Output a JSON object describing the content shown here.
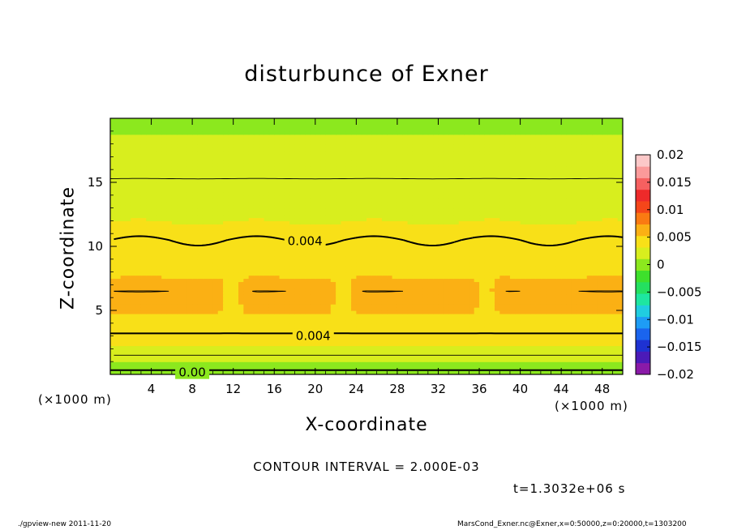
{
  "title": "disturbunce of Exner",
  "xlabel": "X-coordinate",
  "ylabel": "Z-coordinate",
  "x_unit_left": "(×1000 m)",
  "x_unit_right": "(×1000 m)",
  "contour_interval_text": "CONTOUR INTERVAL = 2.000E-03",
  "time_text": "t=1.3032e+06 s",
  "footer": {
    "left": "./gpview-new   2011-11-20",
    "right": "MarsCond_Exner.nc@Exner,x=0:50000,z=0:20000,t=1303200"
  },
  "chart_data": {
    "type": "heatmap",
    "title": "disturbunce of Exner",
    "xlabel": "X-coordinate",
    "ylabel": "Z-coordinate",
    "xlim": [
      0,
      50
    ],
    "ylim": [
      0,
      20
    ],
    "x_ticks": [
      4,
      8,
      12,
      16,
      20,
      24,
      28,
      32,
      36,
      40,
      44,
      48
    ],
    "y_ticks": [
      5,
      10,
      15
    ],
    "colorbar": {
      "min": -0.02,
      "max": 0.02,
      "tick_values": [
        0.02,
        0.015,
        0.01,
        0.005,
        0,
        -0.005,
        -0.01,
        -0.015,
        -0.02
      ],
      "tick_labels": [
        "0.02",
        "0.015",
        "0.01",
        "0.005",
        "0",
        "−0.005",
        "−0.01",
        "−0.015",
        "−0.02"
      ],
      "colors": [
        "#8a1aa8",
        "#4b1ab8",
        "#1e32d2",
        "#1a64ee",
        "#1e9cf5",
        "#20cde0",
        "#1ee6a0",
        "#24e060",
        "#3ee02c",
        "#8ce81e",
        "#d8ee1e",
        "#f8e018",
        "#fbb014",
        "#fa7a12",
        "#f5461a",
        "#ee2a2a",
        "#f66060",
        "#fb9a9a",
        "#fcc8c8"
      ]
    },
    "contour_labels": [
      {
        "x": 19,
        "z": 10.4,
        "text": "0.004"
      },
      {
        "x": 19.8,
        "z": 3.0,
        "text": "0.004"
      },
      {
        "x": 8,
        "z": 0.15,
        "text": "0.00"
      }
    ],
    "vertical_profile": [
      {
        "z": 0.0,
        "value": -0.0006
      },
      {
        "z": 1.0,
        "value": 0.0012
      },
      {
        "z": 2.0,
        "value": 0.0028
      },
      {
        "z": 3.0,
        "value": 0.0038
      },
      {
        "z": 4.0,
        "value": 0.0048
      },
      {
        "z": 5.5,
        "value": 0.0058
      },
      {
        "z": 6.5,
        "value": 0.006
      },
      {
        "z": 7.5,
        "value": 0.0053
      },
      {
        "z": 9.0,
        "value": 0.0046
      },
      {
        "z": 10.5,
        "value": 0.004
      },
      {
        "z": 12.0,
        "value": 0.0031
      },
      {
        "z": 13.5,
        "value": 0.0025
      },
      {
        "z": 16.0,
        "value": 0.0018
      },
      {
        "z": 18.5,
        "value": 0.0012
      },
      {
        "z": 20.0,
        "value": 0.0006
      }
    ],
    "contour_interval": 0.002,
    "time_s": 1303200
  }
}
